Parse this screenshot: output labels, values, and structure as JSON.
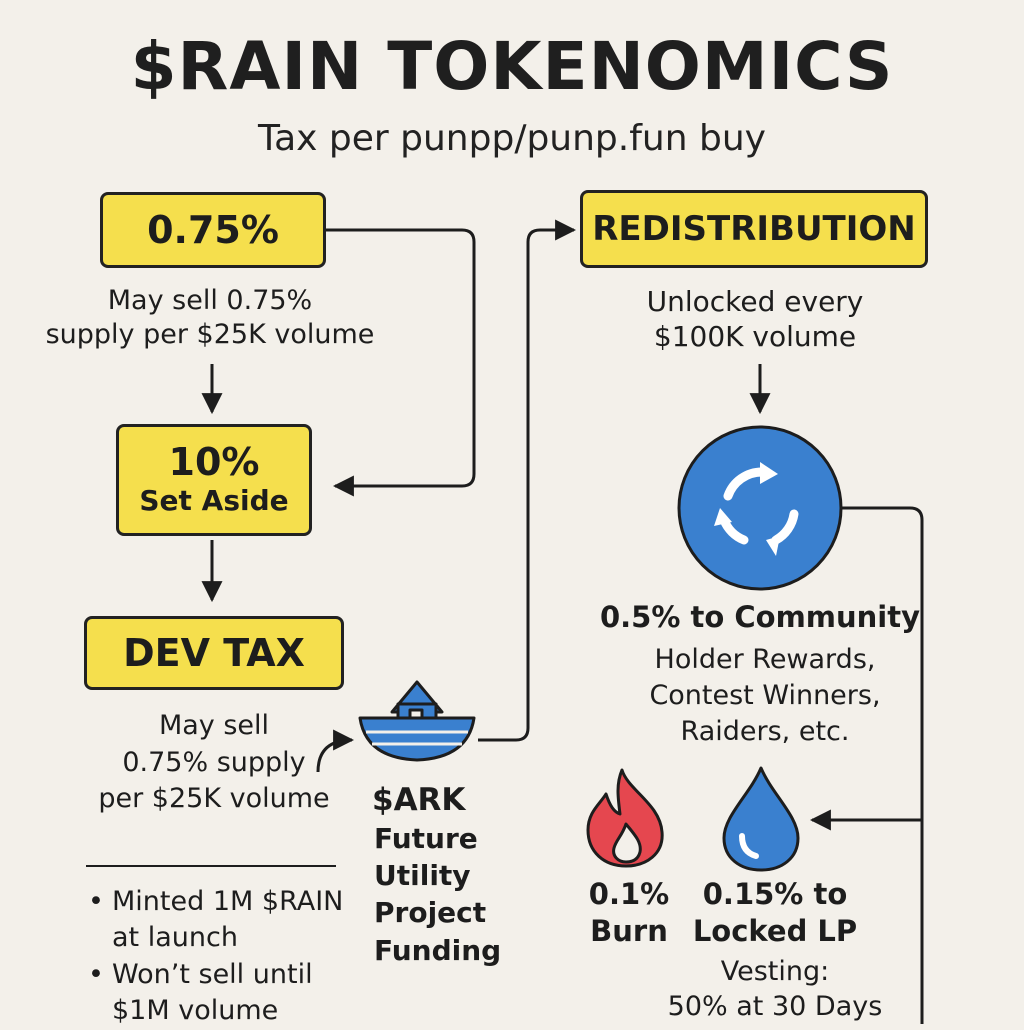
{
  "header": {
    "title": "$RAIN TOKENOMICS",
    "subtitle": "Tax per punpp/punp.fun buy"
  },
  "left": {
    "rate_box": "0.75%",
    "rate_desc": [
      "May sell 0.75%",
      "supply per $25K volume"
    ],
    "set_aside": {
      "pct": "10%",
      "label": "Set Aside"
    },
    "dev_tax_box": "DEV TAX",
    "dev_tax_desc": [
      "May sell",
      "0.75% supply",
      "per $25K volume"
    ],
    "notes": [
      [
        "Minted 1M $RAIN",
        "at launch"
      ],
      [
        "Won’t sell until",
        "$1M volume"
      ]
    ]
  },
  "ark": {
    "name": "$ARK",
    "desc": [
      "Future",
      "Utility",
      "Project",
      "Funding"
    ]
  },
  "right": {
    "redistribution_box": "REDISTRIBUTION",
    "unlock_desc": [
      "Unlocked every",
      "$100K volume"
    ],
    "community": {
      "title": "0.5% to Community",
      "items": [
        "Holder Rewards,",
        "Contest Winners,",
        "Raiders, etc."
      ]
    },
    "burn": {
      "lines": [
        "0.1%",
        "Burn"
      ]
    },
    "lp": {
      "lines": [
        "0.15% to",
        "Locked LP"
      ],
      "vesting": [
        "Vesting:",
        "50% at 30 Days"
      ]
    }
  },
  "icons": [
    "refresh-icon",
    "house-boat-icon",
    "flame-icon",
    "droplet-icon"
  ],
  "colors": {
    "background": "#f3f0ea",
    "box_fill": "#f5df4d",
    "accent_blue": "#3a80cf",
    "flame_red": "#e5474f"
  }
}
